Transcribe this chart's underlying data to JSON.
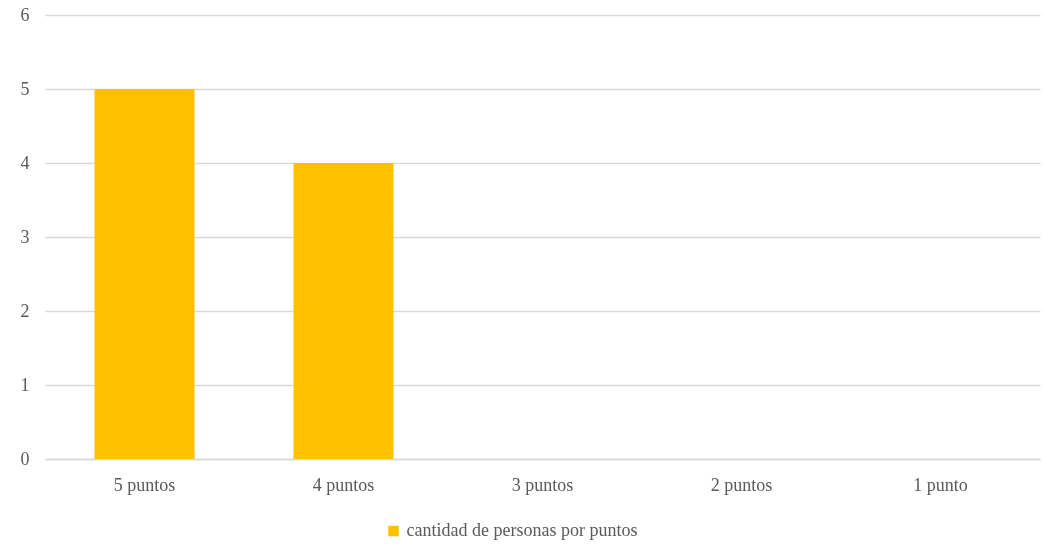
{
  "chart_data": {
    "type": "bar",
    "categories": [
      "5 puntos",
      "4 puntos",
      "3 puntos",
      "2 puntos",
      "1 punto"
    ],
    "series": [
      {
        "name": "cantidad de personas por puntos",
        "color": "#ffc000",
        "values": [
          5,
          4,
          0,
          0,
          0
        ]
      }
    ],
    "ylim": [
      0,
      6
    ],
    "yticks": [
      0,
      1,
      2,
      3,
      4,
      5,
      6
    ],
    "grid": "y",
    "legend": "bottom"
  }
}
